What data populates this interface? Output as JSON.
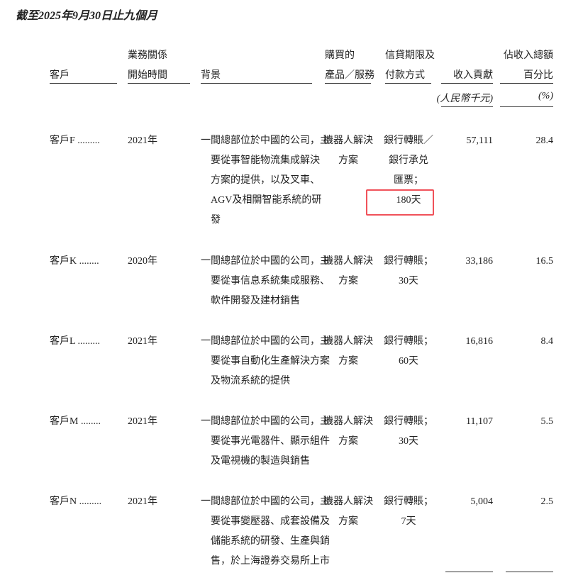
{
  "title": "截至2025年9月30日止九個月",
  "headers": {
    "customer": "客戶",
    "start_line1": "業務關係",
    "start_line2": "開始時間",
    "background": "背景",
    "product_line1": "購買的",
    "product_line2": "產品／服務",
    "credit_line1": "信貸期限及",
    "credit_line2": "付款方式",
    "revenue": "收入貢獻",
    "pct_line1": "佔收入總額",
    "pct_line2": "百分比",
    "revenue_unit": "(人民幣千元)",
    "pct_unit": "(%)"
  },
  "rows": [
    {
      "customer": "客戶F .........",
      "start": "2021年",
      "background": [
        "一間總部位於中國的公司，主",
        "要從事智能物流集成解決",
        "方案的提供，以及叉車、",
        "AGV及相關智能系統的研",
        "發"
      ],
      "product": [
        "機器人解決",
        "方案"
      ],
      "credit": [
        "銀行轉賬／",
        "銀行承兑",
        "匯票；",
        "180天"
      ],
      "revenue": "57,111",
      "pct": "28.4"
    },
    {
      "customer": "客戶K ........",
      "start": "2020年",
      "background": [
        "一間總部位於中國的公司，主",
        "要從事信息系統集成服務、",
        "軟件開發及建材銷售"
      ],
      "product": [
        "機器人解決",
        "方案"
      ],
      "credit": [
        "銀行轉賬；",
        "30天"
      ],
      "revenue": "33,186",
      "pct": "16.5"
    },
    {
      "customer": "客戶L .........",
      "start": "2021年",
      "background": [
        "一間總部位於中國的公司，主",
        "要從事自動化生產解決方案",
        "及物流系統的提供"
      ],
      "product": [
        "機器人解決",
        "方案"
      ],
      "credit": [
        "銀行轉賬；",
        "60天"
      ],
      "revenue": "16,816",
      "pct": "8.4"
    },
    {
      "customer": "客戶M ........",
      "start": "2021年",
      "background": [
        "一間總部位於中國的公司，主",
        "要從事光電器件、顯示組件",
        "及電視機的製造與銷售"
      ],
      "product": [
        "機器人解決",
        "方案"
      ],
      "credit": [
        "銀行轉賬；",
        "30天"
      ],
      "revenue": "11,107",
      "pct": "5.5"
    },
    {
      "customer": "客戶N .........",
      "start": "2021年",
      "background": [
        "一間總部位於中國的公司，主",
        "要從事變壓器、成套設備及",
        "儲能系統的研發、生產與銷",
        "售，於上海證券交易所上市"
      ],
      "product": [
        "機器人解決",
        "方案"
      ],
      "credit": [
        "銀行轉賬；",
        "7天"
      ],
      "revenue": "5,004",
      "pct": "2.5"
    }
  ],
  "highlight_color": "#f0525a"
}
